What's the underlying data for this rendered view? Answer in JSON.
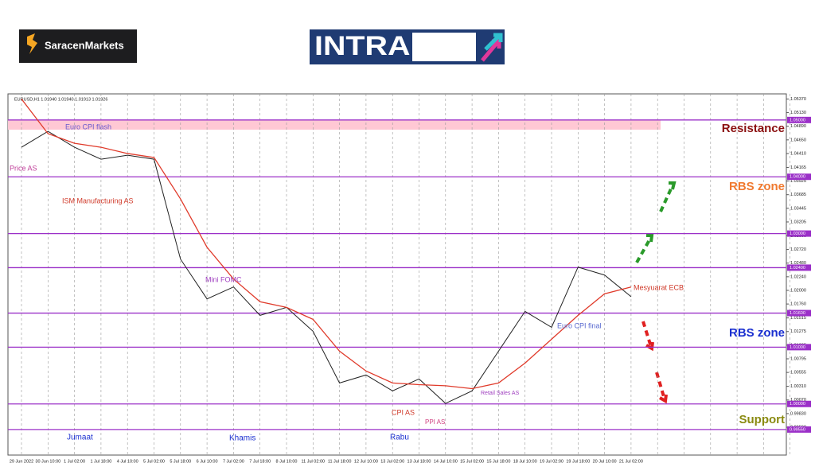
{
  "header": {
    "brand": "SaracenMarkets",
    "logo": "INTRADAY"
  },
  "chart_data": {
    "type": "line",
    "title": "EURUSD,H1  1.01940 1.01940 1.01913 1.01926",
    "categories": [
      "29 Jun 2022",
      "30 Jun 10:00",
      "1 Jul 02:00",
      "1 Jul 18:00",
      "4 Jul 10:00",
      "5 Jul 02:00",
      "5 Jul 18:00",
      "6 Jul 10:00",
      "7 Jul 02:00",
      "7 Jul 18:00",
      "8 Jul 10:00",
      "11 Jul 02:00",
      "11 Jul 18:00",
      "12 Jul 10:00",
      "13 Jul 02:00",
      "13 Jul 18:00",
      "14 Jul 10:00",
      "15 Jul 02:00",
      "15 Jul 18:00",
      "18 Jul 10:00",
      "19 Jul 02:00",
      "19 Jul 18:00",
      "20 Jul 10:00",
      "21 Jul 02:00"
    ],
    "series": [
      {
        "name": "EURUSD",
        "color": "#222222",
        "values": [
          1.0452,
          1.048,
          1.0452,
          1.0431,
          1.0438,
          1.0431,
          1.0255,
          1.0185,
          1.0206,
          1.0156,
          1.017,
          1.0128,
          1.0037,
          1.0051,
          1.0023,
          1.0044,
          1.0001,
          1.0023,
          1.0093,
          1.0163,
          1.0135,
          1.0241,
          1.0227,
          1.0189
        ]
      },
      {
        "name": "MA",
        "color": "#e03a2a",
        "values": [
          1.0537,
          1.0476,
          1.0459,
          1.0452,
          1.0441,
          1.0434,
          1.0361,
          1.0276,
          1.022,
          1.018,
          1.017,
          1.0149,
          1.0093,
          1.0058,
          1.0037,
          1.0034,
          1.0032,
          1.0027,
          1.0037,
          1.0072,
          1.0114,
          1.0156,
          1.0194,
          1.0206
        ]
      }
    ],
    "ylim": [
      0.991,
      1.0546
    ],
    "yticks": [
      {
        "value": 1.0537,
        "label": "1.05370"
      },
      {
        "value": 1.0513,
        "label": "1.05130"
      },
      {
        "value": 1.0489,
        "label": "1.04890"
      },
      {
        "value": 1.0465,
        "label": "1.04650"
      },
      {
        "value": 1.0441,
        "label": "1.04410"
      },
      {
        "value": 1.04165,
        "label": "1.04165"
      },
      {
        "value": 1.03925,
        "label": "1.03925"
      },
      {
        "value": 1.03685,
        "label": "1.03685"
      },
      {
        "value": 1.03445,
        "label": "1.03445"
      },
      {
        "value": 1.03205,
        "label": "1.03205"
      },
      {
        "value": 1.0296,
        "label": "1.02960"
      },
      {
        "value": 1.0272,
        "label": "1.02720"
      },
      {
        "value": 1.0248,
        "label": "1.02480"
      },
      {
        "value": 1.0224,
        "label": "1.02240"
      },
      {
        "value": 1.02,
        "label": "1.02000"
      },
      {
        "value": 1.0176,
        "label": "1.01760"
      },
      {
        "value": 1.01515,
        "label": "1.01515"
      },
      {
        "value": 1.01275,
        "label": "1.01275"
      },
      {
        "value": 1.01035,
        "label": "1.01035"
      },
      {
        "value": 1.00795,
        "label": "1.00795"
      },
      {
        "value": 1.00555,
        "label": "1.00555"
      },
      {
        "value": 1.0031,
        "label": "1.00310"
      },
      {
        "value": 1.0007,
        "label": "1.00070"
      },
      {
        "value": 0.9983,
        "label": "0.99830"
      },
      {
        "value": 0.9959,
        "label": "0.99590"
      }
    ],
    "levels": [
      {
        "value": 1.05,
        "label": "1.05000"
      },
      {
        "value": 1.04,
        "label": "1.04000"
      },
      {
        "value": 1.03,
        "label": "1.03000"
      },
      {
        "value": 1.024,
        "label": "1.02400"
      },
      {
        "value": 1.016,
        "label": "1.01600"
      },
      {
        "value": 1.01,
        "label": "1.01000"
      },
      {
        "value": 1.0,
        "label": "1.00000"
      },
      {
        "value": 0.9955,
        "label": "0.99550"
      }
    ],
    "level_color": "#9b30c8",
    "resistance_band": [
      1.0483,
      1.05
    ],
    "zones": [
      {
        "label": "Resistance",
        "color": "#8b1010"
      },
      {
        "label": "RBS zone",
        "color": "#f07a30"
      },
      {
        "label": "RBS zone",
        "color": "#1a2fd0"
      },
      {
        "label": "Support",
        "color": "#8a8a10"
      }
    ],
    "annotations": [
      {
        "text": "Euro CPI flash",
        "color": "#6a5acd"
      },
      {
        "text": "Price AS",
        "color": "#c0409a"
      },
      {
        "text": "ISM Manufacturing AS",
        "color": "#d03a2a"
      },
      {
        "text": "Mini FOMC",
        "color": "#a040c0"
      },
      {
        "text": "Mesyuarat ECB",
        "color": "#d03a2a"
      },
      {
        "text": "Euro CPI final",
        "color": "#5a6ad0"
      },
      {
        "text": "Retail Sales AS",
        "color": "#a040c0"
      },
      {
        "text": "CPI AS",
        "color": "#d03a2a"
      },
      {
        "text": "PPI AS",
        "color": "#d04080"
      },
      {
        "text": "Jumaat",
        "color": "#1a2fd0"
      },
      {
        "text": "Khamis",
        "color": "#1a2fd0"
      },
      {
        "text": "Rabu",
        "color": "#1a2fd0"
      }
    ]
  }
}
